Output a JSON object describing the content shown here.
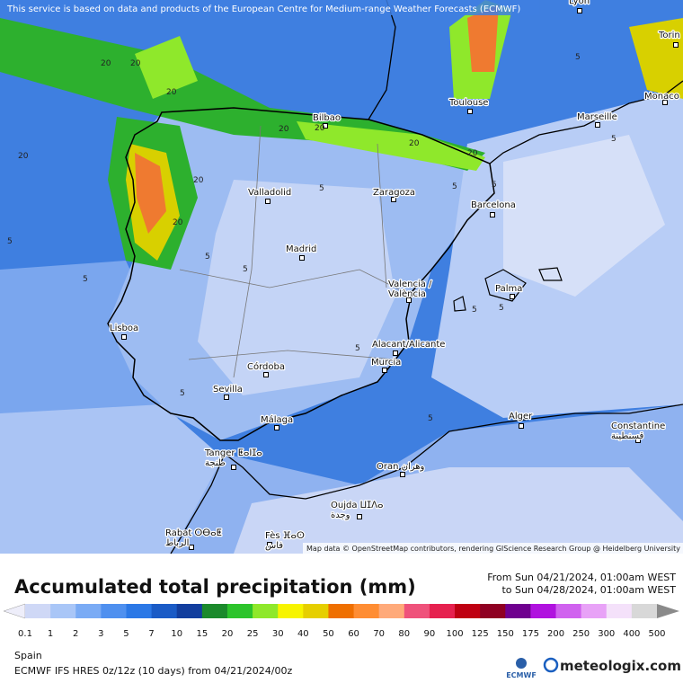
{
  "header": {
    "attribution": "This service is based on data and products of the European Centre for Medium-range Weather Forecasts (ECMWF)"
  },
  "map": {
    "cities": [
      {
        "name": "Lyon"
      },
      {
        "name": "Torin"
      },
      {
        "name": "Monaco"
      },
      {
        "name": "Toulouse"
      },
      {
        "name": "Marseille"
      },
      {
        "name": "Bilbao"
      },
      {
        "name": "Valladolid"
      },
      {
        "name": "Zaragoza"
      },
      {
        "name": "Barcelona"
      },
      {
        "name": "Madrid"
      },
      {
        "name": "Valencia /",
        "name2": "València"
      },
      {
        "name": "Palma"
      },
      {
        "name": "Lisboa"
      },
      {
        "name": "Alacant/Alicante"
      },
      {
        "name": "Murcia"
      },
      {
        "name": "Córdoba"
      },
      {
        "name": "Sevilla"
      },
      {
        "name": "Málaga"
      },
      {
        "name": "Alger"
      },
      {
        "name": "Constantine",
        "name2": "قسنطينة"
      },
      {
        "name": "Tanger ⵟⴰⵏⵊⴰ",
        "name2": "طنجة"
      },
      {
        "name": "Oran وهران"
      },
      {
        "name": "Oujda ⵡⵊⴷⴰ",
        "name2": "وجدة"
      },
      {
        "name": "Rabat ⵔⴱⴰⵟ",
        "name2": "الرباط"
      },
      {
        "name": "Fès ⴼⴰⵙ",
        "name2": "فاس"
      }
    ],
    "contour_labels": [
      20,
      20,
      20,
      20,
      20,
      20,
      20,
      20,
      20,
      20,
      5,
      5,
      5,
      5,
      5,
      5,
      5,
      5,
      5,
      5,
      5,
      5,
      5,
      5
    ],
    "credit": "Map data © OpenStreetMap contributors, rendering GIScience Research Group @ Heidelberg University"
  },
  "footer": {
    "title": "Accumulated total precipitation (mm)",
    "from": "From Sun 04/21/2024, 01:00am WEST",
    "to": "to Sun 04/28/2024, 01:00am WEST",
    "region": "Spain",
    "model": "ECMWF IFS HRES 0z/12z (10 days) from  04/21/2024/00z",
    "legend": {
      "ticks": [
        0.1,
        1,
        2,
        3,
        5,
        7,
        10,
        15,
        20,
        25,
        30,
        40,
        50,
        60,
        70,
        80,
        90,
        100,
        125,
        150,
        175,
        200,
        250,
        300,
        400,
        500
      ],
      "colors": [
        "#eeeefa",
        "#cfd8f6",
        "#a9c6f7",
        "#7aabf5",
        "#4f90ef",
        "#2b78e6",
        "#1a5bc6",
        "#123e9e",
        "#1b8a2c",
        "#2dc42c",
        "#8fe82b",
        "#f7f400",
        "#e6cf00",
        "#ef6f00",
        "#ff8d33",
        "#ffaa7a",
        "#ef527b",
        "#e6214f",
        "#bf0012",
        "#8f0022",
        "#6f008f",
        "#b012df",
        "#d062ef",
        "#e8a2f7",
        "#f4e1fa",
        "#d8d8d8",
        "#8a8a8a"
      ]
    },
    "logos": {
      "ecmwf": "ECMWF",
      "meteologix": "meteologix.com"
    }
  }
}
